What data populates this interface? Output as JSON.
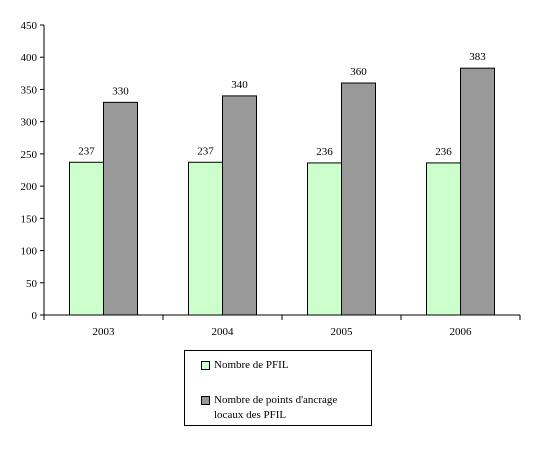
{
  "chart_data": {
    "type": "bar",
    "categories": [
      "2003",
      "2004",
      "2005",
      "2006"
    ],
    "series": [
      {
        "name": "Nombre de PFIL",
        "values": [
          237,
          237,
          236,
          236
        ],
        "color": "#ccffcc"
      },
      {
        "name": "Nombre de points d'ancrage locaux des PFIL",
        "values": [
          330,
          340,
          360,
          383
        ],
        "color": "#999999"
      }
    ],
    "title": "",
    "xlabel": "",
    "ylabel": "",
    "ylim": [
      0,
      450
    ],
    "yticks": [
      0,
      50,
      100,
      150,
      200,
      250,
      300,
      350,
      400,
      450
    ],
    "grid": false,
    "legend_position": "bottom",
    "data_labels": true
  }
}
